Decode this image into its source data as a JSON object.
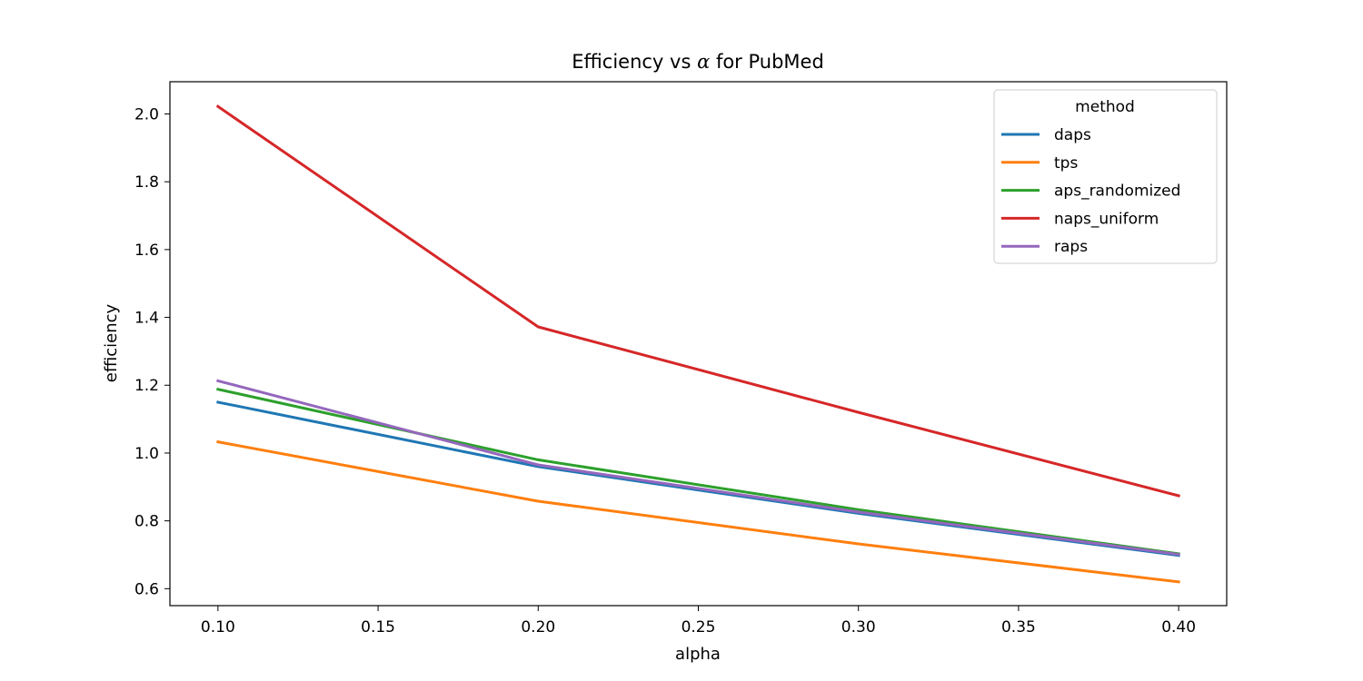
{
  "chart_data": {
    "type": "line",
    "title_prefix": "Efficiency vs ",
    "title_symbol": "α",
    "title_suffix": " for PubMed",
    "xlabel": "alpha",
    "ylabel": "efficiency",
    "xlim": [
      0.085,
      0.415
    ],
    "ylim": [
      0.55,
      2.095
    ],
    "xticks": [
      0.1,
      0.15,
      0.2,
      0.25,
      0.3,
      0.35,
      0.4
    ],
    "xtick_labels": [
      "0.10",
      "0.15",
      "0.20",
      "0.25",
      "0.30",
      "0.35",
      "0.40"
    ],
    "yticks": [
      0.6,
      0.8,
      1.0,
      1.2,
      1.4,
      1.6,
      1.8,
      2.0
    ],
    "ytick_labels": [
      "0.6",
      "0.8",
      "1.0",
      "1.2",
      "1.4",
      "1.6",
      "1.8",
      "2.0"
    ],
    "x": [
      0.1,
      0.2,
      0.3,
      0.4
    ],
    "legend_title": "method",
    "legend_position": "top-right",
    "grid": false,
    "series": [
      {
        "name": "daps",
        "color": "#1f77b4",
        "values": [
          1.15,
          0.96,
          0.822,
          0.698
        ]
      },
      {
        "name": "tps",
        "color": "#ff7f0e",
        "values": [
          1.033,
          0.858,
          0.732,
          0.62
        ]
      },
      {
        "name": "aps_randomized",
        "color": "#2ca02c",
        "values": [
          1.188,
          0.98,
          0.833,
          0.703
        ]
      },
      {
        "name": "naps_uniform",
        "color": "#d62728",
        "values": [
          2.022,
          1.372,
          1.12,
          0.874
        ]
      },
      {
        "name": "raps",
        "color": "#9467bd",
        "values": [
          1.213,
          0.965,
          0.826,
          0.701
        ]
      }
    ]
  }
}
